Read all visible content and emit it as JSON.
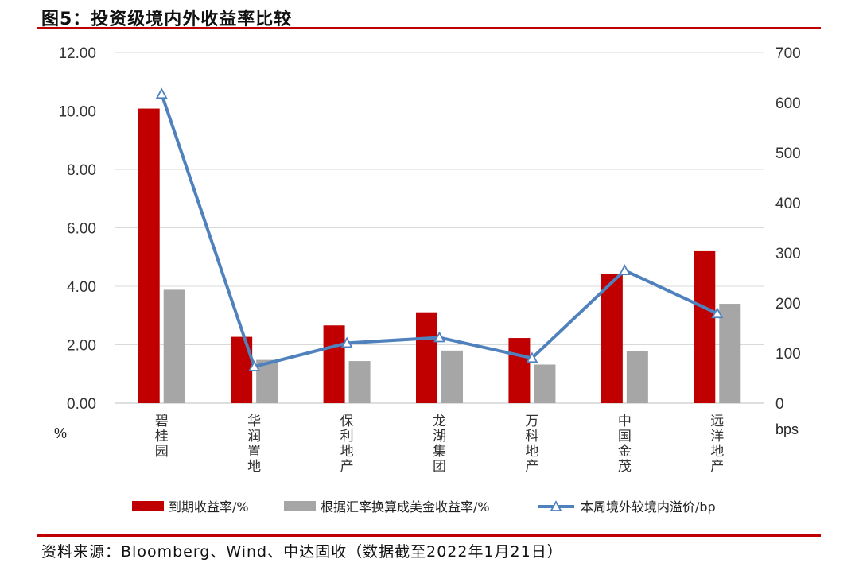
{
  "title": "图5：投资级境内外收益率比较",
  "source": "资料来源：Bloomberg、Wind、中达固收（数据截至2022年1月21日）",
  "colors": {
    "bar1": "#c00000",
    "bar2": "#a6a6a6",
    "line": "#4f81bd",
    "rule": "#c00000"
  },
  "chart_data": {
    "type": "bar",
    "categories": [
      "碧桂园",
      "华润置地",
      "保利地产",
      "龙湖集团",
      "万科地产",
      "中国金茂",
      "远洋地产"
    ],
    "series": [
      {
        "name": "到期收益率/%",
        "type": "bar",
        "axis": "left",
        "values": [
          10.08,
          2.27,
          2.66,
          3.11,
          2.23,
          4.42,
          5.2
        ]
      },
      {
        "name": "根据汇率换算成美金收益率/%",
        "type": "bar",
        "axis": "left",
        "values": [
          3.88,
          1.48,
          1.44,
          1.8,
          1.32,
          1.77,
          3.4
        ]
      },
      {
        "name": "本周境外较境内溢价/bp",
        "type": "line",
        "axis": "right",
        "marker": "triangle",
        "values": [
          617,
          73,
          120,
          131,
          90,
          265,
          179
        ]
      }
    ],
    "left_axis": {
      "unit": "%",
      "ylim": [
        0,
        12
      ],
      "ticks": [
        "0.00",
        "2.00",
        "4.00",
        "6.00",
        "8.00",
        "10.00",
        "12.00"
      ]
    },
    "right_axis": {
      "unit": "bps",
      "ylim": [
        0,
        700
      ],
      "ticks": [
        "0",
        "100",
        "200",
        "300",
        "400",
        "500",
        "600",
        "700"
      ]
    },
    "grid": true,
    "legend": "bottom"
  }
}
